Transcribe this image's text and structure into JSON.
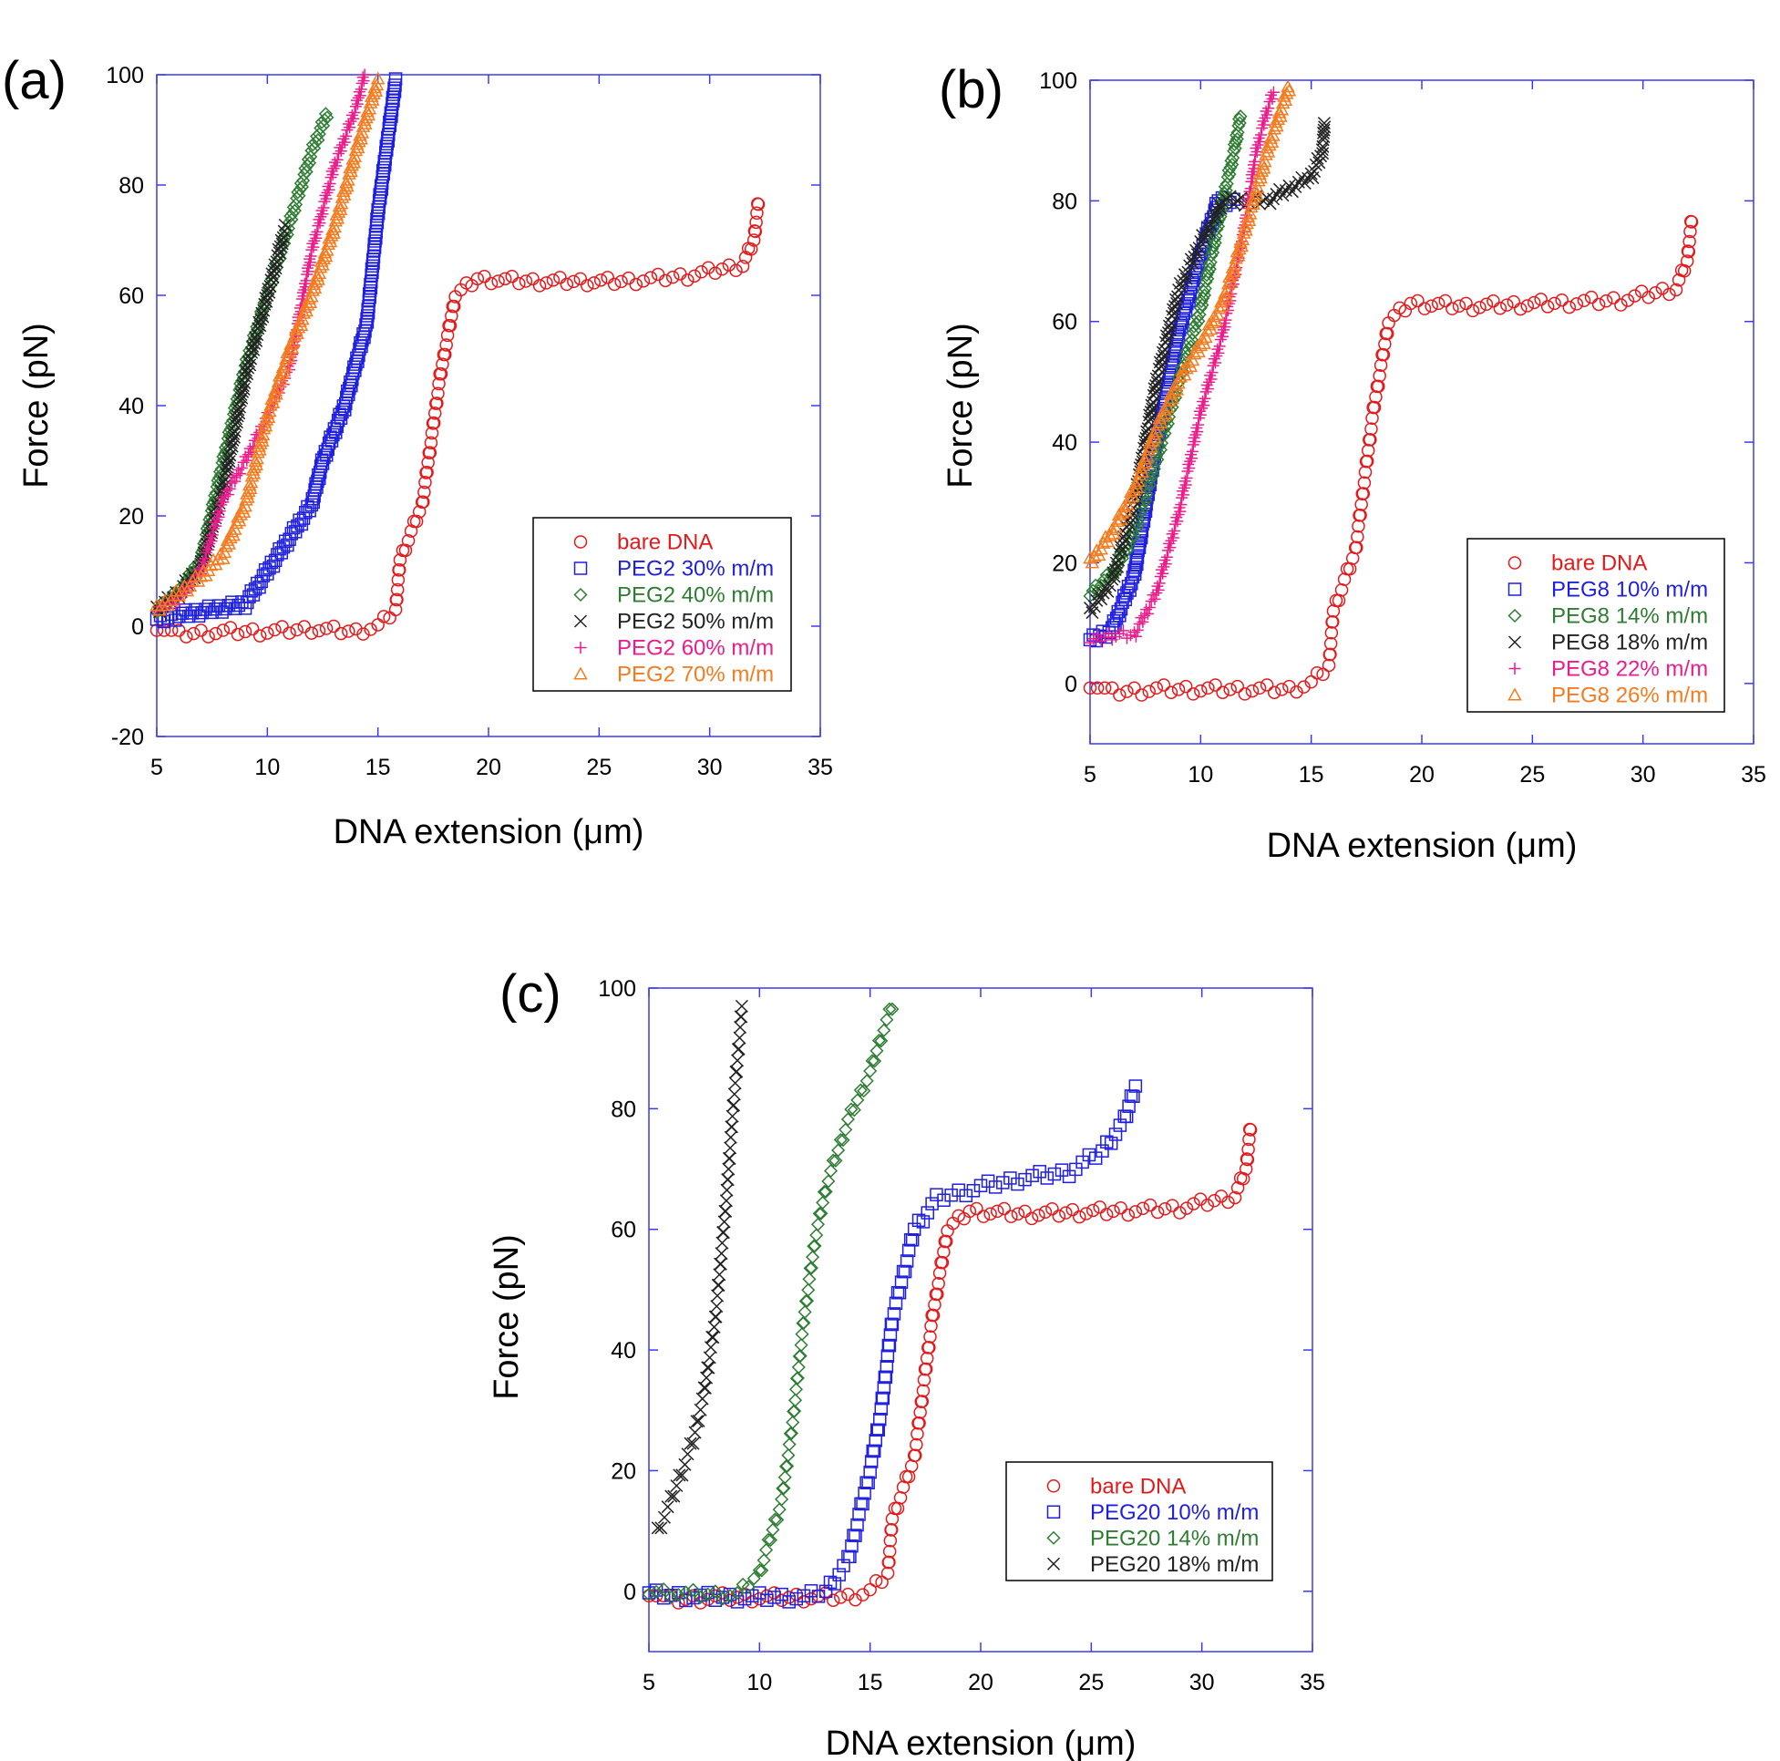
{
  "colors": {
    "frame": "#3a3af0",
    "bare": "#e31a1c",
    "blue": "#1f1fe0",
    "green": "#2e7d32",
    "black": "#222222",
    "magenta": "#ec1c8c",
    "orange": "#f47c20"
  },
  "chart_data": [
    {
      "type": "scatter",
      "panel_label": "(a)",
      "xlabel": "DNA extension (μm)",
      "ylabel": "Force (pN)",
      "xlim": [
        5,
        35
      ],
      "ylim": [
        -20,
        100
      ],
      "xticks": [
        5,
        10,
        15,
        20,
        25,
        30,
        35
      ],
      "yticks": [
        -20,
        0,
        20,
        40,
        60,
        80,
        100
      ],
      "legend_position": "lower-right",
      "series": [
        {
          "name": "bare DNA",
          "color": "bare",
          "marker": "circle",
          "points": [
            [
              5,
              0
            ],
            [
              6,
              -1.5
            ],
            [
              8,
              -1
            ],
            [
              10,
              -1
            ],
            [
              12,
              -0.5
            ],
            [
              14,
              -1
            ],
            [
              15,
              0
            ],
            [
              15.8,
              3
            ],
            [
              16,
              12
            ],
            [
              17,
              22
            ],
            [
              17.8,
              45
            ],
            [
              18.5,
              60
            ],
            [
              19.5,
              63
            ],
            [
              22,
              62.5
            ],
            [
              26,
              62.5
            ],
            [
              29,
              63.5
            ],
            [
              31.5,
              65.5
            ],
            [
              32,
              70
            ],
            [
              32.2,
              77
            ]
          ]
        },
        {
          "name": "PEG2 30% m/m",
          "color": "blue",
          "marker": "square",
          "points": [
            [
              5,
              1
            ],
            [
              6,
              2
            ],
            [
              7.5,
              3
            ],
            [
              9,
              4
            ],
            [
              10,
              10
            ],
            [
              11,
              16
            ],
            [
              12,
              22
            ],
            [
              12.5,
              30
            ],
            [
              13.5,
              40
            ],
            [
              14.5,
              55
            ],
            [
              15,
              75
            ],
            [
              15.5,
              90
            ],
            [
              15.8,
              99
            ]
          ]
        },
        {
          "name": "PEG2 40% m/m",
          "color": "green",
          "marker": "diamond",
          "points": [
            [
              5,
              3
            ],
            [
              6,
              6
            ],
            [
              7,
              12
            ],
            [
              8,
              30
            ],
            [
              9,
              47
            ],
            [
              10,
              60
            ],
            [
              11,
              73
            ],
            [
              12,
              86
            ],
            [
              12.7,
              93
            ]
          ]
        },
        {
          "name": "PEG2 50% m/m",
          "color": "black",
          "marker": "cross",
          "points": [
            [
              5,
              3
            ],
            [
              6,
              6
            ],
            [
              7,
              11
            ],
            [
              8,
              25
            ],
            [
              9,
              45
            ],
            [
              10,
              60
            ],
            [
              10.8,
              72
            ]
          ]
        },
        {
          "name": "PEG2 60% m/m",
          "color": "magenta",
          "marker": "plus",
          "points": [
            [
              5,
              3
            ],
            [
              6,
              5
            ],
            [
              7,
              10
            ],
            [
              8,
              23
            ],
            [
              9,
              30
            ],
            [
              10,
              38
            ],
            [
              11,
              47
            ],
            [
              12,
              68
            ],
            [
              13,
              83
            ],
            [
              14,
              94
            ],
            [
              14.4,
              100
            ]
          ]
        },
        {
          "name": "PEG2 70% m/m",
          "color": "orange",
          "marker": "triangle",
          "points": [
            [
              5,
              3
            ],
            [
              6,
              6
            ],
            [
              7,
              9
            ],
            [
              8,
              13
            ],
            [
              9,
              22
            ],
            [
              10,
              38
            ],
            [
              11,
              50
            ],
            [
              12,
              60
            ],
            [
              13,
              72
            ],
            [
              14,
              86
            ],
            [
              15,
              99
            ]
          ]
        }
      ]
    },
    {
      "type": "scatter",
      "panel_label": "(b)",
      "xlabel": "DNA extension (μm)",
      "ylabel": "Force (pN)",
      "xlim": [
        5,
        35
      ],
      "ylim": [
        -10,
        100
      ],
      "xticks": [
        5,
        10,
        15,
        20,
        25,
        30,
        35
      ],
      "yticks": [
        0,
        20,
        40,
        60,
        80,
        100
      ],
      "legend_position": "lower-right",
      "series": [
        {
          "name": "bare DNA",
          "color": "bare",
          "marker": "circle",
          "points": [
            [
              5,
              0
            ],
            [
              6,
              -1.5
            ],
            [
              8,
              -1
            ],
            [
              10,
              -1
            ],
            [
              12,
              -1
            ],
            [
              14,
              -1
            ],
            [
              15,
              0
            ],
            [
              15.8,
              3
            ],
            [
              16,
              12
            ],
            [
              17,
              22
            ],
            [
              17.8,
              45
            ],
            [
              18.5,
              60
            ],
            [
              19.5,
              63
            ],
            [
              22,
              62.5
            ],
            [
              26,
              63
            ],
            [
              29,
              63.5
            ],
            [
              31.5,
              65.5
            ],
            [
              32,
              70
            ],
            [
              32.2,
              77
            ]
          ]
        },
        {
          "name": "PEG8 10% m/m",
          "color": "blue",
          "marker": "square",
          "points": [
            [
              5,
              7
            ],
            [
              6,
              9
            ],
            [
              7,
              18
            ],
            [
              8,
              40
            ],
            [
              9,
              58
            ],
            [
              10,
              71
            ],
            [
              10.8,
              80
            ],
            [
              11.5,
              80
            ]
          ]
        },
        {
          "name": "PEG8 14% m/m",
          "color": "green",
          "marker": "diamond",
          "points": [
            [
              5,
              15
            ],
            [
              6,
              18
            ],
            [
              7,
              25
            ],
            [
              8,
              37
            ],
            [
              9,
              50
            ],
            [
              10,
              62
            ],
            [
              11,
              80
            ],
            [
              11.5,
              88
            ],
            [
              11.8,
              94
            ]
          ]
        },
        {
          "name": "PEG8 18% m/m",
          "color": "black",
          "marker": "cross",
          "points": [
            [
              5,
              12
            ],
            [
              6,
              17
            ],
            [
              7,
              30
            ],
            [
              8,
              50
            ],
            [
              9,
              65
            ],
            [
              10,
              73
            ],
            [
              11,
              80
            ],
            [
              12,
              80
            ],
            [
              13,
              80
            ],
            [
              14,
              82
            ],
            [
              15,
              84
            ],
            [
              15.5,
              88
            ],
            [
              15.6,
              93
            ]
          ]
        },
        {
          "name": "PEG8 22% m/m",
          "color": "magenta",
          "marker": "plus",
          "points": [
            [
              5,
              7
            ],
            [
              6,
              8
            ],
            [
              7,
              8
            ],
            [
              8,
              15
            ],
            [
              9,
              28
            ],
            [
              10,
              45
            ],
            [
              11,
              58
            ],
            [
              12,
              76
            ],
            [
              12.5,
              88
            ],
            [
              13,
              95
            ],
            [
              13.3,
              98
            ]
          ]
        },
        {
          "name": "PEG8 26% m/m",
          "color": "orange",
          "marker": "triangle",
          "points": [
            [
              5,
              20
            ],
            [
              6,
              25
            ],
            [
              7,
              32
            ],
            [
              8,
              42
            ],
            [
              9,
              50
            ],
            [
              10,
              56
            ],
            [
              11,
              63
            ],
            [
              12,
              75
            ],
            [
              13,
              88
            ],
            [
              14,
              99
            ]
          ]
        }
      ]
    },
    {
      "type": "scatter",
      "panel_label": "(c)",
      "xlabel": "DNA extension (μm)",
      "ylabel": "Force (pN)",
      "xlim": [
        5,
        35
      ],
      "ylim": [
        -10,
        100
      ],
      "xticks": [
        5,
        10,
        15,
        20,
        25,
        30,
        35
      ],
      "yticks": [
        0,
        20,
        40,
        60,
        80,
        100
      ],
      "legend_position": "lower-right",
      "series": [
        {
          "name": "bare DNA",
          "color": "bare",
          "marker": "circle",
          "points": [
            [
              5,
              0
            ],
            [
              6,
              -1.5
            ],
            [
              8,
              -1
            ],
            [
              10,
              -1
            ],
            [
              12,
              -1
            ],
            [
              14,
              -1
            ],
            [
              15,
              0
            ],
            [
              15.8,
              3
            ],
            [
              16,
              12
            ],
            [
              17,
              22
            ],
            [
              17.8,
              45
            ],
            [
              18.5,
              60
            ],
            [
              19.5,
              63
            ],
            [
              22,
              62.5
            ],
            [
              26,
              63
            ],
            [
              29,
              63.5
            ],
            [
              31.5,
              65.5
            ],
            [
              32,
              70
            ],
            [
              32.2,
              77
            ]
          ]
        },
        {
          "name": "PEG20 10% m/m",
          "color": "blue",
          "marker": "square",
          "points": [
            [
              5,
              -0.5
            ],
            [
              8,
              -1
            ],
            [
              10,
              -1
            ],
            [
              12,
              -1
            ],
            [
              13,
              0
            ],
            [
              14,
              5
            ],
            [
              15,
              20
            ],
            [
              15.5,
              30
            ],
            [
              16,
              45
            ],
            [
              17,
              60
            ],
            [
              18,
              65
            ],
            [
              20,
              67
            ],
            [
              22,
              68.5
            ],
            [
              24,
              69.5
            ],
            [
              25.5,
              73
            ],
            [
              26.5,
              78
            ],
            [
              27,
              84
            ]
          ]
        },
        {
          "name": "PEG20 14% m/m",
          "color": "green",
          "marker": "diamond",
          "points": [
            [
              5,
              0
            ],
            [
              7,
              -0.5
            ],
            [
              9,
              -0.5
            ],
            [
              10,
              3
            ],
            [
              11,
              15
            ],
            [
              11.5,
              28
            ],
            [
              12,
              45
            ],
            [
              12.5,
              58
            ],
            [
              13,
              67
            ],
            [
              14,
              78
            ],
            [
              15,
              86
            ],
            [
              15.5,
              92
            ],
            [
              16,
              97
            ]
          ]
        },
        {
          "name": "PEG20 18% m/m",
          "color": "black",
          "marker": "cross",
          "points": [
            [
              5.4,
              10
            ],
            [
              6,
              15
            ],
            [
              6.5,
              20
            ],
            [
              7,
              25
            ],
            [
              7.5,
              33
            ],
            [
              8,
              45
            ],
            [
              8.5,
              65
            ],
            [
              8.8,
              80
            ],
            [
              9,
              88
            ],
            [
              9.1,
              92
            ],
            [
              9.2,
              97
            ]
          ]
        }
      ]
    }
  ]
}
